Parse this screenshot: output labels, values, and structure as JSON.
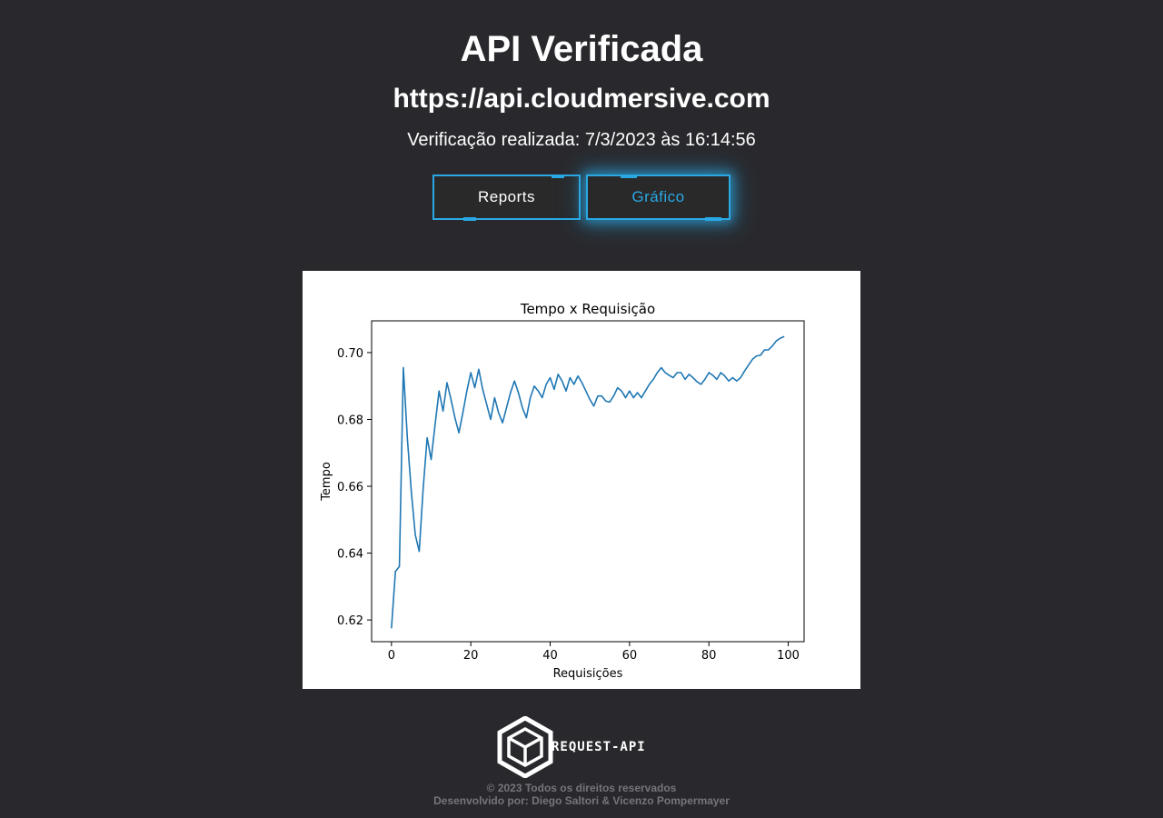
{
  "header": {
    "title": "API Verificada",
    "url": "https://api.cloudmersive.com",
    "checked_at": "Verificação realizada: 7/3/2023 às 16:14:56"
  },
  "buttons": {
    "reports_label": "Reports",
    "grafico_label": "Gráfico"
  },
  "colors": {
    "accent": "#29a8e4",
    "background": "#29292d",
    "line": "#1f77b4"
  },
  "chart_data": {
    "type": "line",
    "title": "Tempo x Requisição",
    "xlabel": "Requisições",
    "ylabel": "Tempo",
    "xlim": [
      -5,
      104
    ],
    "ylim": [
      0.6135,
      0.7095
    ],
    "xticks": [
      0,
      20,
      40,
      60,
      80,
      100
    ],
    "yticks": [
      0.62,
      0.64,
      0.66,
      0.68,
      0.7
    ],
    "ytick_labels": [
      "0.62",
      "0.64",
      "0.66",
      "0.68",
      "0.70"
    ],
    "grid": false,
    "series": [
      {
        "values": [
          0.6175,
          0.6345,
          0.636,
          0.6955,
          0.6745,
          0.6585,
          0.6455,
          0.6405,
          0.6595,
          0.6745,
          0.668,
          0.6785,
          0.6885,
          0.6825,
          0.691,
          0.686,
          0.6805,
          0.676,
          0.682,
          0.6885,
          0.694,
          0.6895,
          0.695,
          0.689,
          0.6845,
          0.68,
          0.6865,
          0.682,
          0.679,
          0.6835,
          0.688,
          0.6915,
          0.688,
          0.6835,
          0.6805,
          0.6865,
          0.69,
          0.6885,
          0.6865,
          0.6905,
          0.6925,
          0.689,
          0.6935,
          0.6915,
          0.6885,
          0.6925,
          0.6905,
          0.693,
          0.691,
          0.6885,
          0.686,
          0.684,
          0.687,
          0.687,
          0.6855,
          0.6852,
          0.687,
          0.6895,
          0.6885,
          0.6865,
          0.6885,
          0.6865,
          0.688,
          0.6865,
          0.6885,
          0.6905,
          0.692,
          0.694,
          0.6955,
          0.694,
          0.6932,
          0.6925,
          0.694,
          0.694,
          0.692,
          0.6935,
          0.6925,
          0.6913,
          0.6905,
          0.692,
          0.694,
          0.6932,
          0.692,
          0.694,
          0.693,
          0.6915,
          0.6925,
          0.6915,
          0.6925,
          0.6945,
          0.6963,
          0.698,
          0.699,
          0.6992,
          0.7008,
          0.7008,
          0.702,
          0.7035,
          0.7043,
          0.7048
        ]
      }
    ]
  },
  "footer": {
    "logo_text": "REQUEST-API",
    "copyright": "© 2023 Todos os direitos reservados",
    "credits": "Desenvolvido por: Diego Saltori & Vicenzo Pompermayer"
  }
}
